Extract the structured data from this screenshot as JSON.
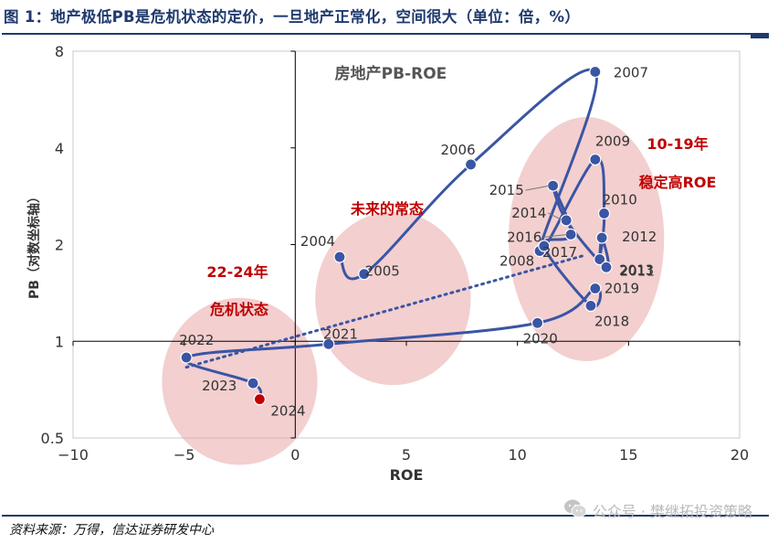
{
  "figure": {
    "title": "图 1：地产极低PB是危机状态的定价，一旦地产正常化，空间很大（单位：倍，%）",
    "source": "资料来源：万得，信达证券研发中心",
    "watermark": "公众号 · 樊继拓投资策略",
    "watermark_icon": "wechat-icon"
  },
  "chart_data": {
    "type": "line",
    "title": "房地产PB-ROE",
    "xlabel": "ROE",
    "ylabel": "PB（对数坐标轴）",
    "xlim": [
      -10,
      20
    ],
    "ylim": [
      0.5,
      8
    ],
    "y_scale": "log",
    "x_ticks": [
      -10,
      -5,
      0,
      5,
      10,
      15,
      20
    ],
    "x_tick_labels": [
      "−10",
      "−5",
      "0",
      "5",
      "10",
      "15",
      "20"
    ],
    "y_ticks": [
      0.5,
      1,
      2,
      4,
      8
    ],
    "y_tick_labels": [
      "0.5",
      "1",
      "2",
      "4",
      "8"
    ],
    "series": [
      {
        "name": "房地产PB-ROE",
        "color": "#3a55a4",
        "points": [
          {
            "year": "2004",
            "x": 2.0,
            "y": 1.83
          },
          {
            "year": "2005",
            "x": 3.1,
            "y": 1.62
          },
          {
            "year": "2006",
            "x": 7.9,
            "y": 3.55
          },
          {
            "year": "2007",
            "x": 13.5,
            "y": 6.9
          },
          {
            "year": "2008",
            "x": 11.0,
            "y": 1.91
          },
          {
            "year": "2009",
            "x": 13.5,
            "y": 3.68
          },
          {
            "year": "2010",
            "x": 13.9,
            "y": 2.5
          },
          {
            "year": "2011",
            "x": 13.7,
            "y": 1.8
          },
          {
            "year": "2012",
            "x": 13.8,
            "y": 2.1
          },
          {
            "year": "2013",
            "x": 14.0,
            "y": 1.7
          },
          {
            "year": "2014",
            "x": 12.2,
            "y": 2.38
          },
          {
            "year": "2015",
            "x": 11.6,
            "y": 3.05
          },
          {
            "year": "2016",
            "x": 12.4,
            "y": 2.15
          },
          {
            "year": "2017",
            "x": 11.2,
            "y": 1.98
          },
          {
            "year": "2018",
            "x": 13.3,
            "y": 1.29
          },
          {
            "year": "2019",
            "x": 13.5,
            "y": 1.46
          },
          {
            "year": "2020",
            "x": 10.9,
            "y": 1.14
          },
          {
            "year": "2021",
            "x": 1.5,
            "y": 0.98
          },
          {
            "year": "2022",
            "x": -4.9,
            "y": 0.89
          },
          {
            "year": "2023",
            "x": -1.9,
            "y": 0.74
          },
          {
            "year": "2024",
            "x": -1.6,
            "y": 0.66
          }
        ]
      }
    ],
    "highlight_point": {
      "year": "2024",
      "color": "#c00000"
    },
    "trend_line": {
      "style": "dotted",
      "color": "#3a55a4",
      "from": {
        "x": -4.9,
        "y": 0.83
      },
      "to": {
        "x": 13.0,
        "y": 1.85
      }
    },
    "regions": [
      {
        "name": "crisis",
        "cx": -2.5,
        "cy": 0.75,
        "rx": 3.5,
        "ry_log": 0.26
      },
      {
        "name": "future",
        "cx": 4.4,
        "cy": 1.36,
        "rx": 3.5,
        "ry_log": 0.27
      },
      {
        "name": "stable",
        "cx": 13.1,
        "cy": 2.08,
        "rx": 3.5,
        "ry_log": 0.38
      }
    ],
    "annotations": [
      {
        "text": "22-24年",
        "color": "#c00000"
      },
      {
        "text": "危机状态",
        "color": "#c00000"
      },
      {
        "text": "未来的常态",
        "color": "#c00000"
      },
      {
        "text": "10-19年",
        "color": "#c00000"
      },
      {
        "text": "稳定高ROE",
        "color": "#c00000"
      }
    ],
    "grid": false
  }
}
